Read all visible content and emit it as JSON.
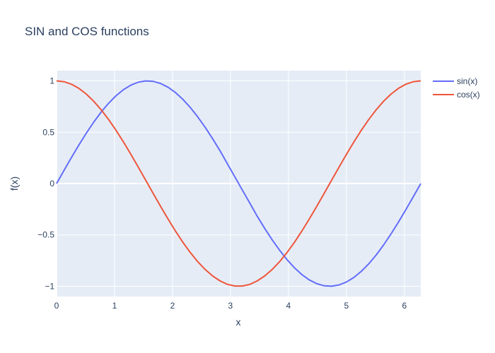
{
  "chart_data": {
    "type": "line",
    "title": "SIN and COS functions",
    "xlabel": "x",
    "ylabel": "f(x)",
    "xlim": [
      0,
      6.2832
    ],
    "ylim": [
      -1.1,
      1.1
    ],
    "x_ticks": [
      0,
      1,
      2,
      3,
      4,
      5,
      6
    ],
    "x_tick_labels": [
      "0",
      "1",
      "2",
      "3",
      "4",
      "5",
      "6"
    ],
    "y_ticks": [
      -1,
      -0.5,
      0,
      0.5,
      1
    ],
    "y_tick_labels": [
      "−1",
      "−0.5",
      "0",
      "0.5",
      "1"
    ],
    "grid": true,
    "plot_background": "#e5ecf6",
    "legend_position": "top-right outside",
    "x": [
      0,
      0.1282,
      0.2565,
      0.3847,
      0.5129,
      0.6411,
      0.7694,
      0.8976,
      1.0258,
      1.1541,
      1.2823,
      1.4105,
      1.5387,
      1.667,
      1.7952,
      1.9234,
      2.0517,
      2.1799,
      2.3081,
      2.4363,
      2.5646,
      2.6928,
      2.821,
      2.9493,
      3.0775,
      3.2057,
      3.3339,
      3.4622,
      3.5904,
      3.7186,
      3.8468,
      3.9751,
      4.1033,
      4.2315,
      4.3598,
      4.488,
      4.6162,
      4.7444,
      4.8727,
      5.0009,
      5.1291,
      5.2574,
      5.3856,
      5.5138,
      5.642,
      5.7703,
      5.8985,
      6.0267,
      6.155,
      6.2832
    ],
    "series": [
      {
        "name": "sin(x)",
        "color": "#636efa",
        "values": [
          0,
          0.1279,
          0.2537,
          0.3752,
          0.4907,
          0.5981,
          0.6959,
          0.7818,
          0.855,
          0.9145,
          0.9586,
          0.9874,
          0.9995,
          0.9954,
          0.9747,
          0.9381,
          0.8863,
          0.8197,
          0.7403,
          0.6485,
          0.5467,
          0.4361,
          0.3185,
          0.1901,
          0.064,
          -0.064,
          -0.1901,
          -0.3185,
          -0.4361,
          -0.5467,
          -0.6485,
          -0.7403,
          -0.8197,
          -0.8863,
          -0.9381,
          -0.9747,
          -0.9954,
          -0.9995,
          -0.9874,
          -0.9586,
          -0.9145,
          -0.855,
          -0.7818,
          -0.6959,
          -0.5981,
          -0.4907,
          -0.3752,
          -0.2537,
          -0.1279,
          0
        ]
      },
      {
        "name": "cos(x)",
        "color": "#ef553b",
        "values": [
          1,
          0.9918,
          0.9673,
          0.9269,
          0.8713,
          0.8014,
          0.7183,
          0.6235,
          0.5187,
          0.4047,
          0.2846,
          0.1588,
          0.032,
          -0.0959,
          -0.2225,
          -0.3456,
          -0.4631,
          -0.5727,
          -0.6723,
          -0.7612,
          -0.8373,
          -0.8999,
          -0.9479,
          -0.9818,
          -0.9979,
          -0.9979,
          -0.9818,
          -0.9479,
          -0.8999,
          -0.8373,
          -0.7612,
          -0.6723,
          -0.5727,
          -0.4631,
          -0.3456,
          -0.2225,
          -0.0959,
          0.032,
          0.1588,
          0.2846,
          0.4047,
          0.5187,
          0.6235,
          0.7183,
          0.8014,
          0.8713,
          0.9269,
          0.9673,
          0.9918,
          1
        ]
      }
    ]
  }
}
